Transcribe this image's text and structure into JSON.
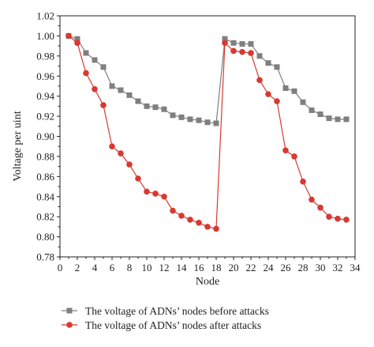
{
  "chart_data": {
    "type": "line",
    "title": "",
    "xlabel": "Node",
    "ylabel": "Voltage per uint",
    "xlim": [
      0,
      34
    ],
    "ylim": [
      0.78,
      1.02
    ],
    "xticks": [
      0,
      2,
      4,
      6,
      8,
      10,
      12,
      14,
      16,
      18,
      20,
      22,
      24,
      26,
      28,
      30,
      32,
      34
    ],
    "yticks": [
      0.78,
      0.8,
      0.82,
      0.84,
      0.86,
      0.88,
      0.9,
      0.92,
      0.94,
      0.96,
      0.98,
      1.0,
      1.02
    ],
    "legend_position": "bottom",
    "series": [
      {
        "name": "The voltage of ADNs’ nodes before attacks",
        "color": "#7f7f7f",
        "marker": "square",
        "segments": [
          {
            "x": [
              1,
              2,
              3,
              4,
              5,
              6,
              7,
              8,
              9,
              10,
              11,
              12,
              13,
              14,
              15,
              16,
              17,
              18
            ],
            "y": [
              1.0,
              0.997,
              0.983,
              0.976,
              0.969,
              0.95,
              0.946,
              0.941,
              0.935,
              0.93,
              0.929,
              0.927,
              0.921,
              0.919,
              0.917,
              0.916,
              0.914,
              0.913
            ]
          },
          {
            "x": [
              18,
              19,
              20,
              21,
              22,
              23,
              24,
              25,
              26,
              27,
              28,
              29,
              30,
              31,
              32,
              33
            ],
            "y": [
              0.913,
              0.997,
              0.993,
              0.992,
              0.992,
              0.98,
              0.973,
              0.969,
              0.948,
              0.945,
              0.934,
              0.926,
              0.922,
              0.918,
              0.917,
              0.917
            ]
          }
        ]
      },
      {
        "name": "The voltage of ADNs’ nodes after attacks",
        "color": "#d63a32",
        "marker": "circle",
        "segments": [
          {
            "x": [
              1,
              2,
              3,
              4,
              5,
              6,
              7,
              8,
              9,
              10,
              11,
              12,
              13,
              14,
              15,
              16,
              17,
              18
            ],
            "y": [
              1.0,
              0.993,
              0.963,
              0.947,
              0.931,
              0.89,
              0.883,
              0.872,
              0.858,
              0.845,
              0.843,
              0.84,
              0.826,
              0.821,
              0.817,
              0.814,
              0.81,
              0.808
            ]
          },
          {
            "x": [
              18,
              19,
              20,
              21,
              22,
              23,
              24,
              25,
              26,
              27,
              28,
              29,
              30,
              31,
              32,
              33
            ],
            "y": [
              0.808,
              0.993,
              0.985,
              0.984,
              0.983,
              0.956,
              0.942,
              0.935,
              0.886,
              0.88,
              0.855,
              0.837,
              0.829,
              0.82,
              0.818,
              0.817
            ]
          }
        ]
      }
    ]
  }
}
